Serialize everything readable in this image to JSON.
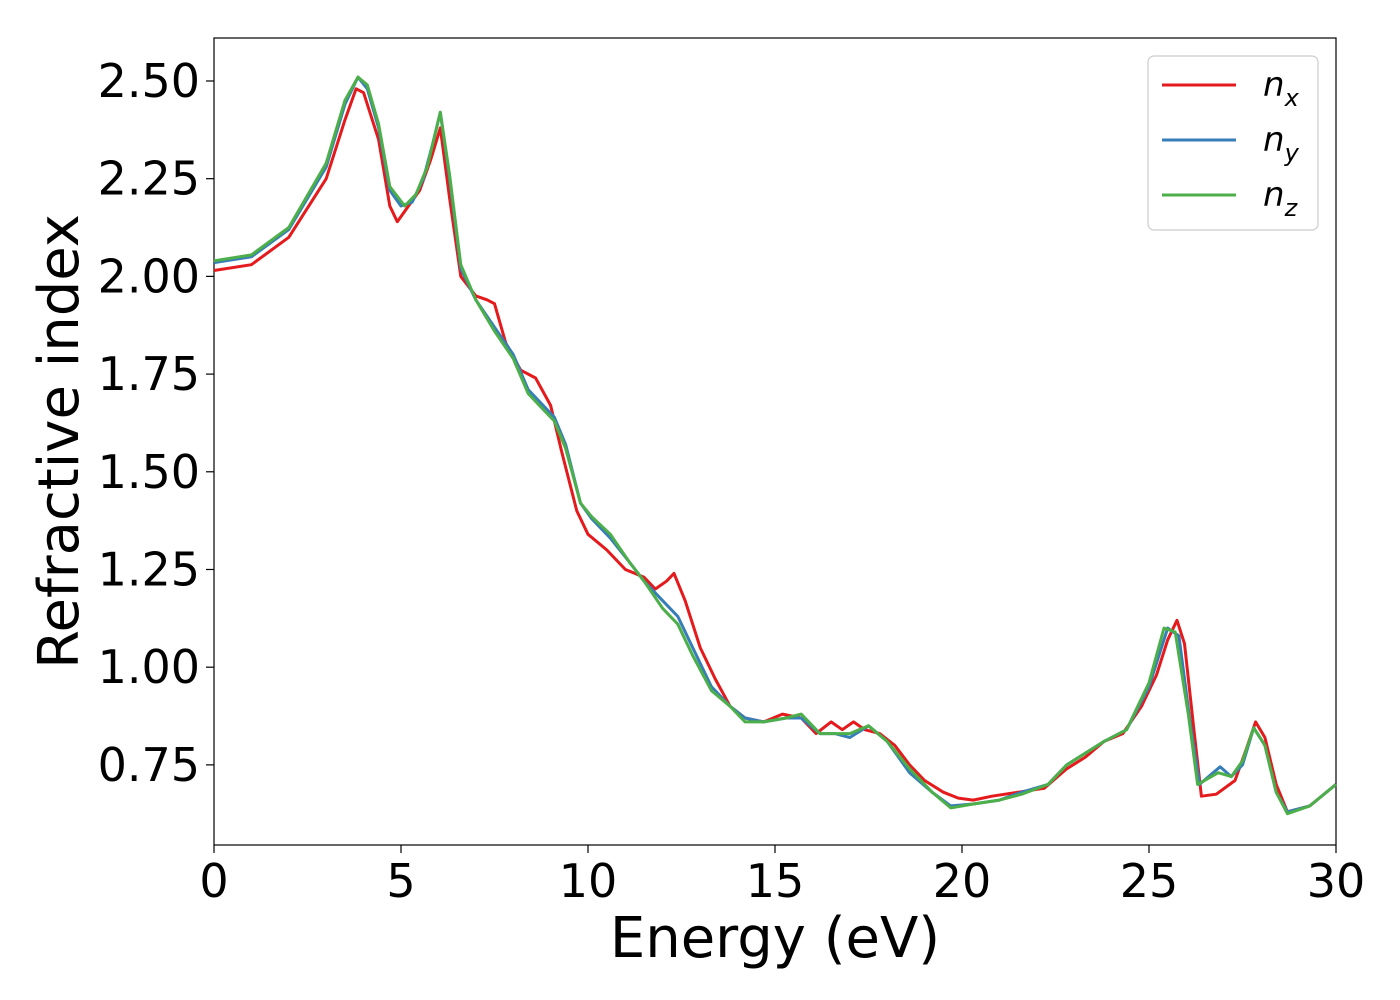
{
  "chart_data": {
    "type": "line",
    "xlabel": "Energy (eV)",
    "ylabel": "Refractive index",
    "xlim": [
      0,
      30
    ],
    "ylim": [
      0.545,
      2.61
    ],
    "x_ticks": [
      0,
      5,
      10,
      15,
      20,
      25,
      30
    ],
    "y_ticks": [
      0.75,
      1.0,
      1.25,
      1.5,
      1.75,
      2.0,
      2.25,
      2.5
    ],
    "x_tick_labels": [
      "0",
      "5",
      "10",
      "15",
      "20",
      "25",
      "30"
    ],
    "y_tick_labels": [
      "0.75",
      "1.00",
      "1.25",
      "1.50",
      "1.75",
      "2.00",
      "2.25",
      "2.50"
    ],
    "grid": false,
    "legend": {
      "placement": "top-right"
    },
    "series": [
      {
        "name": "n",
        "subscript": "x",
        "color": "#e41a1c",
        "points": [
          [
            0,
            2.015
          ],
          [
            1,
            2.03
          ],
          [
            2,
            2.1
          ],
          [
            3,
            2.25
          ],
          [
            3.5,
            2.4
          ],
          [
            3.8,
            2.48
          ],
          [
            4,
            2.47
          ],
          [
            4.4,
            2.35
          ],
          [
            4.7,
            2.18
          ],
          [
            4.9,
            2.14
          ],
          [
            5.2,
            2.18
          ],
          [
            5.5,
            2.22
          ],
          [
            5.8,
            2.3
          ],
          [
            6.05,
            2.38
          ],
          [
            6.3,
            2.2
          ],
          [
            6.6,
            2.0
          ],
          [
            7,
            1.95
          ],
          [
            7.3,
            1.94
          ],
          [
            7.5,
            1.93
          ],
          [
            7.8,
            1.83
          ],
          [
            8.2,
            1.76
          ],
          [
            8.6,
            1.74
          ],
          [
            9,
            1.67
          ],
          [
            9.3,
            1.55
          ],
          [
            9.7,
            1.4
          ],
          [
            10,
            1.34
          ],
          [
            10.5,
            1.3
          ],
          [
            11,
            1.25
          ],
          [
            11.5,
            1.23
          ],
          [
            11.8,
            1.2
          ],
          [
            12.1,
            1.22
          ],
          [
            12.3,
            1.24
          ],
          [
            12.6,
            1.17
          ],
          [
            13,
            1.05
          ],
          [
            13.4,
            0.97
          ],
          [
            13.8,
            0.9
          ],
          [
            14.2,
            0.87
          ],
          [
            14.7,
            0.86
          ],
          [
            15.2,
            0.88
          ],
          [
            15.7,
            0.87
          ],
          [
            16.1,
            0.83
          ],
          [
            16.5,
            0.86
          ],
          [
            16.8,
            0.84
          ],
          [
            17.1,
            0.86
          ],
          [
            17.4,
            0.84
          ],
          [
            17.8,
            0.83
          ],
          [
            18.2,
            0.8
          ],
          [
            18.6,
            0.75
          ],
          [
            19,
            0.71
          ],
          [
            19.5,
            0.68
          ],
          [
            19.9,
            0.665
          ],
          [
            20.3,
            0.66
          ],
          [
            20.8,
            0.67
          ],
          [
            21.5,
            0.68
          ],
          [
            22.2,
            0.69
          ],
          [
            22.8,
            0.74
          ],
          [
            23.3,
            0.77
          ],
          [
            23.8,
            0.81
          ],
          [
            24.3,
            0.83
          ],
          [
            24.8,
            0.9
          ],
          [
            25.2,
            0.98
          ],
          [
            25.5,
            1.07
          ],
          [
            25.75,
            1.12
          ],
          [
            25.95,
            1.06
          ],
          [
            26.2,
            0.84
          ],
          [
            26.4,
            0.67
          ],
          [
            26.8,
            0.675
          ],
          [
            27.3,
            0.71
          ],
          [
            27.6,
            0.79
          ],
          [
            27.85,
            0.86
          ],
          [
            28.1,
            0.82
          ],
          [
            28.4,
            0.7
          ],
          [
            28.7,
            0.63
          ],
          [
            29.3,
            0.645
          ],
          [
            30,
            0.7
          ]
        ]
      },
      {
        "name": "n",
        "subscript": "y",
        "color": "#377eb8",
        "points": [
          [
            0,
            2.035
          ],
          [
            1,
            2.05
          ],
          [
            2,
            2.12
          ],
          [
            3,
            2.28
          ],
          [
            3.5,
            2.44
          ],
          [
            3.85,
            2.51
          ],
          [
            4.1,
            2.48
          ],
          [
            4.4,
            2.38
          ],
          [
            4.7,
            2.22
          ],
          [
            5,
            2.18
          ],
          [
            5.3,
            2.19
          ],
          [
            5.6,
            2.25
          ],
          [
            5.85,
            2.34
          ],
          [
            6.05,
            2.42
          ],
          [
            6.3,
            2.25
          ],
          [
            6.6,
            2.02
          ],
          [
            7,
            1.94
          ],
          [
            7.5,
            1.87
          ],
          [
            8,
            1.8
          ],
          [
            8.4,
            1.71
          ],
          [
            8.8,
            1.67
          ],
          [
            9.1,
            1.64
          ],
          [
            9.4,
            1.57
          ],
          [
            9.8,
            1.42
          ],
          [
            10.1,
            1.38
          ],
          [
            10.6,
            1.33
          ],
          [
            11.1,
            1.27
          ],
          [
            11.5,
            1.22
          ],
          [
            12,
            1.17
          ],
          [
            12.4,
            1.13
          ],
          [
            12.8,
            1.05
          ],
          [
            13.3,
            0.95
          ],
          [
            13.8,
            0.9
          ],
          [
            14.2,
            0.87
          ],
          [
            14.7,
            0.86
          ],
          [
            15.3,
            0.87
          ],
          [
            15.7,
            0.87
          ],
          [
            16.2,
            0.83
          ],
          [
            16.6,
            0.83
          ],
          [
            17,
            0.82
          ],
          [
            17.5,
            0.85
          ],
          [
            18,
            0.81
          ],
          [
            18.6,
            0.73
          ],
          [
            19.2,
            0.68
          ],
          [
            19.7,
            0.645
          ],
          [
            20.3,
            0.65
          ],
          [
            21,
            0.66
          ],
          [
            21.6,
            0.68
          ],
          [
            22.3,
            0.7
          ],
          [
            22.8,
            0.75
          ],
          [
            23.3,
            0.78
          ],
          [
            23.8,
            0.81
          ],
          [
            24.4,
            0.84
          ],
          [
            25,
            0.95
          ],
          [
            25.5,
            1.1
          ],
          [
            25.8,
            1.08
          ],
          [
            26.1,
            0.86
          ],
          [
            26.35,
            0.7
          ],
          [
            26.9,
            0.745
          ],
          [
            27.2,
            0.72
          ],
          [
            27.5,
            0.75
          ],
          [
            27.8,
            0.845
          ],
          [
            28.1,
            0.8
          ],
          [
            28.4,
            0.68
          ],
          [
            28.7,
            0.63
          ],
          [
            29.3,
            0.645
          ],
          [
            30,
            0.7
          ]
        ]
      },
      {
        "name": "n",
        "subscript": "z",
        "color": "#4daf4a",
        "points": [
          [
            0,
            2.04
          ],
          [
            1,
            2.055
          ],
          [
            2,
            2.125
          ],
          [
            3,
            2.29
          ],
          [
            3.5,
            2.45
          ],
          [
            3.85,
            2.51
          ],
          [
            4.1,
            2.49
          ],
          [
            4.4,
            2.39
          ],
          [
            4.7,
            2.23
          ],
          [
            5.1,
            2.18
          ],
          [
            5.4,
            2.21
          ],
          [
            5.7,
            2.28
          ],
          [
            5.9,
            2.36
          ],
          [
            6.05,
            2.42
          ],
          [
            6.3,
            2.26
          ],
          [
            6.6,
            2.03
          ],
          [
            7,
            1.94
          ],
          [
            7.5,
            1.86
          ],
          [
            8,
            1.79
          ],
          [
            8.4,
            1.7
          ],
          [
            8.8,
            1.66
          ],
          [
            9.1,
            1.63
          ],
          [
            9.4,
            1.56
          ],
          [
            9.8,
            1.42
          ],
          [
            10.1,
            1.385
          ],
          [
            10.6,
            1.34
          ],
          [
            11.1,
            1.27
          ],
          [
            11.5,
            1.22
          ],
          [
            12,
            1.15
          ],
          [
            12.4,
            1.11
          ],
          [
            12.8,
            1.03
          ],
          [
            13.3,
            0.94
          ],
          [
            13.8,
            0.9
          ],
          [
            14.2,
            0.86
          ],
          [
            14.7,
            0.86
          ],
          [
            15.3,
            0.87
          ],
          [
            15.7,
            0.88
          ],
          [
            16.2,
            0.83
          ],
          [
            16.6,
            0.83
          ],
          [
            17,
            0.83
          ],
          [
            17.5,
            0.85
          ],
          [
            18,
            0.81
          ],
          [
            18.6,
            0.74
          ],
          [
            19.2,
            0.68
          ],
          [
            19.7,
            0.64
          ],
          [
            20.3,
            0.65
          ],
          [
            21,
            0.66
          ],
          [
            21.6,
            0.675
          ],
          [
            22.3,
            0.7
          ],
          [
            22.8,
            0.75
          ],
          [
            23.3,
            0.78
          ],
          [
            23.8,
            0.81
          ],
          [
            24.4,
            0.84
          ],
          [
            25,
            0.96
          ],
          [
            25.4,
            1.1
          ],
          [
            25.7,
            1.09
          ],
          [
            26.05,
            0.88
          ],
          [
            26.3,
            0.7
          ],
          [
            26.85,
            0.73
          ],
          [
            27.2,
            0.72
          ],
          [
            27.5,
            0.76
          ],
          [
            27.8,
            0.845
          ],
          [
            28.1,
            0.8
          ],
          [
            28.4,
            0.68
          ],
          [
            28.7,
            0.625
          ],
          [
            29.3,
            0.645
          ],
          [
            30,
            0.7
          ]
        ]
      }
    ]
  }
}
